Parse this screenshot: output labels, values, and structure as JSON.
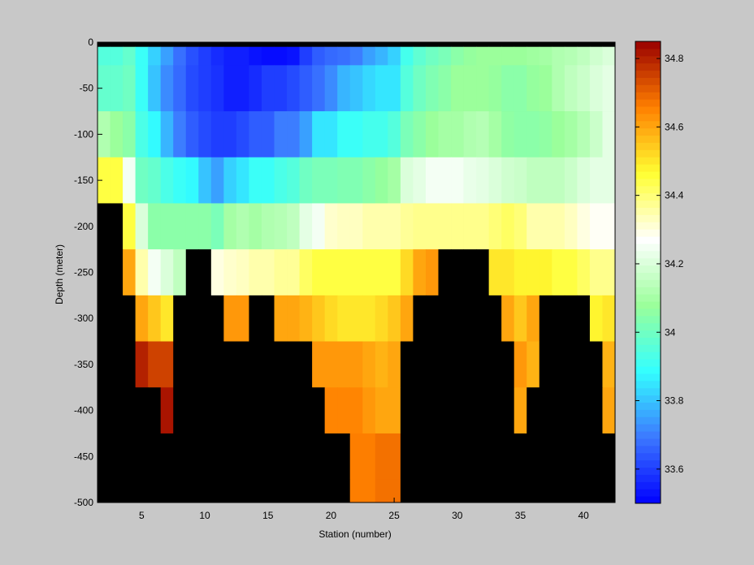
{
  "chart_data": [
    {
      "type": "heatmap",
      "title": "",
      "xlabel": "Station (number)",
      "ylabel": "Depth (meter)",
      "xlim": [
        1.5,
        42.5
      ],
      "ylim": [
        -500,
        0
      ],
      "xticks": [
        5,
        10,
        15,
        20,
        25,
        30,
        35,
        40
      ],
      "yticks": [
        0,
        -50,
        -100,
        -150,
        -200,
        -250,
        -300,
        -350,
        -400,
        -450,
        -500
      ],
      "no_data_color": "#000000",
      "layers": [
        {
          "z_top": -5,
          "z_bottom": -25
        },
        {
          "z_top": -25,
          "z_bottom": -75
        },
        {
          "z_top": -75,
          "z_bottom": -125
        },
        {
          "z_top": -125,
          "z_bottom": -175
        },
        {
          "z_top": -175,
          "z_bottom": -225
        },
        {
          "z_top": -225,
          "z_bottom": -275
        },
        {
          "z_top": -275,
          "z_bottom": -325
        },
        {
          "z_top": -325,
          "z_bottom": -375
        },
        {
          "z_top": -375,
          "z_bottom": -425
        },
        {
          "z_top": -425,
          "z_bottom": -475
        },
        {
          "z_top": -475,
          "z_bottom": -525
        }
      ],
      "stations": [
        2,
        3,
        4,
        5,
        6,
        7,
        8,
        9,
        10,
        11,
        12,
        13,
        14,
        15,
        16,
        17,
        18,
        19,
        20,
        21,
        22,
        23,
        24,
        25,
        26,
        27,
        28,
        29,
        30,
        31,
        32,
        33,
        34,
        35,
        36,
        37,
        38,
        39,
        40,
        41,
        42
      ],
      "values": [
        [
          33.95,
          33.95,
          33.98,
          33.9,
          33.82,
          33.75,
          33.68,
          33.63,
          33.6,
          33.57,
          33.55,
          33.55,
          33.53,
          33.52,
          33.52,
          33.53,
          33.6,
          33.65,
          33.67,
          33.68,
          33.7,
          33.75,
          33.78,
          33.82,
          33.92,
          33.97,
          34.0,
          34.02,
          34.05,
          34.07,
          34.08,
          34.08,
          34.08,
          34.08,
          34.09,
          34.1,
          34.12,
          34.13,
          34.15,
          34.18,
          34.2
        ],
        [
          33.98,
          33.98,
          34.0,
          33.9,
          33.8,
          33.72,
          33.67,
          33.62,
          33.6,
          33.58,
          33.55,
          33.55,
          33.57,
          33.6,
          33.6,
          33.62,
          33.65,
          33.68,
          33.72,
          33.78,
          33.8,
          33.83,
          33.85,
          33.85,
          33.95,
          34.0,
          34.03,
          34.05,
          34.08,
          34.08,
          34.08,
          34.07,
          34.05,
          34.05,
          34.07,
          34.08,
          34.12,
          34.15,
          34.17,
          34.2,
          34.22
        ],
        [
          34.12,
          34.08,
          34.05,
          33.93,
          33.88,
          33.78,
          33.7,
          33.65,
          33.62,
          33.6,
          33.6,
          33.62,
          33.65,
          33.65,
          33.7,
          33.7,
          33.75,
          33.85,
          33.85,
          33.9,
          33.9,
          33.92,
          33.92,
          33.95,
          34.02,
          34.05,
          34.08,
          34.1,
          34.1,
          34.12,
          34.13,
          34.1,
          34.06,
          34.05,
          34.05,
          34.06,
          34.08,
          34.1,
          34.13,
          34.17,
          34.22
        ],
        [
          34.45,
          34.45,
          34.25,
          34.0,
          33.98,
          33.93,
          33.9,
          33.88,
          33.8,
          33.75,
          33.82,
          33.85,
          33.9,
          33.9,
          33.93,
          33.95,
          34.0,
          34.02,
          34.02,
          34.03,
          34.03,
          34.05,
          34.07,
          34.1,
          34.2,
          34.22,
          34.25,
          34.25,
          34.25,
          34.23,
          34.22,
          34.2,
          34.18,
          34.17,
          34.15,
          34.15,
          34.15,
          34.17,
          34.2,
          34.22,
          34.22
        ],
        [
          null,
          null,
          34.45,
          34.2,
          34.05,
          34.05,
          34.05,
          34.05,
          34.05,
          34.02,
          34.1,
          34.12,
          34.1,
          34.12,
          34.13,
          34.15,
          34.22,
          34.25,
          34.32,
          34.33,
          34.33,
          34.35,
          34.35,
          34.35,
          34.37,
          34.38,
          34.38,
          34.38,
          34.38,
          34.38,
          34.38,
          34.4,
          34.42,
          34.4,
          34.35,
          34.35,
          34.35,
          34.33,
          34.3,
          34.28,
          34.28
        ],
        [
          null,
          null,
          34.6,
          34.35,
          34.25,
          34.2,
          34.15,
          null,
          null,
          34.3,
          34.32,
          34.33,
          34.35,
          34.35,
          34.37,
          34.37,
          34.42,
          34.45,
          34.45,
          34.45,
          34.45,
          34.45,
          34.45,
          34.45,
          34.52,
          34.6,
          34.62,
          null,
          null,
          null,
          null,
          34.5,
          34.5,
          34.48,
          34.48,
          34.48,
          34.45,
          34.45,
          34.42,
          34.38,
          34.38
        ],
        [
          null,
          null,
          null,
          34.6,
          34.55,
          34.5,
          null,
          null,
          null,
          null,
          34.62,
          34.62,
          null,
          null,
          34.6,
          34.6,
          34.58,
          34.55,
          34.52,
          34.5,
          34.5,
          34.5,
          34.52,
          34.55,
          34.6,
          null,
          null,
          null,
          null,
          null,
          null,
          null,
          34.6,
          34.55,
          34.6,
          null,
          null,
          null,
          null,
          34.48,
          34.5
        ],
        [
          null,
          null,
          null,
          34.8,
          34.75,
          34.75,
          null,
          null,
          null,
          null,
          null,
          null,
          null,
          null,
          null,
          null,
          null,
          34.62,
          34.62,
          34.62,
          34.62,
          34.6,
          34.58,
          34.6,
          null,
          null,
          null,
          null,
          null,
          null,
          null,
          null,
          null,
          34.62,
          34.58,
          null,
          null,
          null,
          null,
          null,
          34.58
        ],
        [
          null,
          null,
          null,
          null,
          null,
          34.82,
          null,
          null,
          null,
          null,
          null,
          null,
          null,
          null,
          null,
          null,
          null,
          null,
          34.65,
          34.65,
          34.65,
          34.62,
          34.6,
          34.6,
          null,
          null,
          null,
          null,
          null,
          null,
          null,
          null,
          null,
          34.6,
          null,
          null,
          null,
          null,
          null,
          null,
          34.6
        ],
        [
          null,
          null,
          null,
          null,
          null,
          null,
          null,
          null,
          null,
          null,
          null,
          null,
          null,
          null,
          null,
          null,
          null,
          null,
          null,
          null,
          34.66,
          34.66,
          34.68,
          34.68,
          null,
          null,
          null,
          null,
          null,
          null,
          null,
          null,
          null,
          null,
          null,
          null,
          null,
          null,
          null,
          null,
          null
        ],
        [
          null,
          null,
          null,
          null,
          null,
          null,
          null,
          null,
          null,
          null,
          null,
          null,
          null,
          null,
          null,
          null,
          null,
          null,
          null,
          null,
          34.66,
          34.66,
          34.68,
          34.68,
          null,
          null,
          null,
          null,
          null,
          null,
          null,
          null,
          null,
          null,
          null,
          null,
          null,
          null,
          null,
          null,
          null
        ]
      ]
    },
    {
      "type": "colorbar",
      "range": [
        33.5,
        34.85
      ],
      "ticks": [
        33.6,
        33.8,
        34,
        34.2,
        34.4,
        34.6,
        34.8
      ],
      "tick_labels": [
        "33.6",
        "33.8",
        "34",
        "34.2",
        "34.4",
        "34.6",
        "34.8"
      ],
      "colors": [
        "#0000ff",
        "#3c78ff",
        "#33ffff",
        "#9aff9a",
        "#ffffff",
        "#ffff33",
        "#ff8000",
        "#990000"
      ]
    }
  ]
}
